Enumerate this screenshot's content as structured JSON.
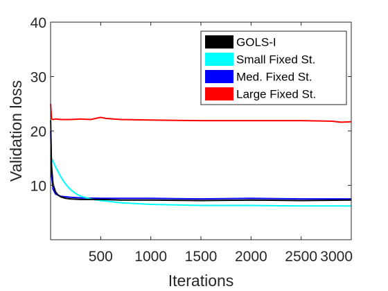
{
  "chart_data": {
    "type": "line",
    "xlabel": "Iterations",
    "ylabel": "Validation loss",
    "xlim": [
      0,
      3000
    ],
    "ylim": [
      0,
      40
    ],
    "xticks": [
      500,
      1000,
      1500,
      2000,
      2500,
      3000
    ],
    "yticks": [
      10,
      20,
      30,
      40
    ],
    "grid": false,
    "legend_position": "top-right",
    "series": [
      {
        "name": "GOLS-I",
        "color": "#000000",
        "x": [
          1,
          10,
          25,
          50,
          75,
          100,
          150,
          200,
          300,
          400,
          500,
          700,
          1000,
          1500,
          2000,
          2500,
          3000
        ],
        "y": [
          22,
          13.5,
          10.2,
          8.8,
          8.2,
          7.9,
          7.6,
          7.5,
          7.4,
          7.4,
          7.4,
          7.3,
          7.3,
          7.2,
          7.3,
          7.2,
          7.3
        ]
      },
      {
        "name": "Small Fixed St.",
        "color": "#00ffff",
        "x": [
          1,
          10,
          25,
          50,
          100,
          150,
          200,
          250,
          300,
          400,
          500,
          700,
          1000,
          1500,
          2000,
          2500,
          3000
        ],
        "y": [
          15.5,
          15.0,
          14.4,
          13.4,
          11.6,
          10.2,
          9.2,
          8.5,
          8.0,
          7.5,
          7.2,
          6.8,
          6.5,
          6.3,
          6.3,
          6.2,
          6.2
        ]
      },
      {
        "name": "Med. Fixed St.",
        "color": "#0000ff",
        "x": [
          1,
          10,
          25,
          50,
          100,
          200,
          300,
          500,
          1000,
          1500,
          2000,
          2500,
          3000
        ],
        "y": [
          20,
          11.8,
          9.3,
          8.4,
          8.0,
          7.8,
          7.7,
          7.6,
          7.6,
          7.5,
          7.6,
          7.5,
          7.5
        ]
      },
      {
        "name": "Large Fixed St.",
        "color": "#ff0000",
        "x": [
          1,
          10,
          25,
          50,
          100,
          200,
          300,
          400,
          500,
          550,
          700,
          1000,
          1500,
          2000,
          2500,
          2800,
          2900,
          3000
        ],
        "y": [
          25,
          22.2,
          22.1,
          22.2,
          22.1,
          22.1,
          22.2,
          22.1,
          22.5,
          22.3,
          22.1,
          22.0,
          21.9,
          21.9,
          21.9,
          21.8,
          21.6,
          21.7
        ]
      }
    ]
  }
}
